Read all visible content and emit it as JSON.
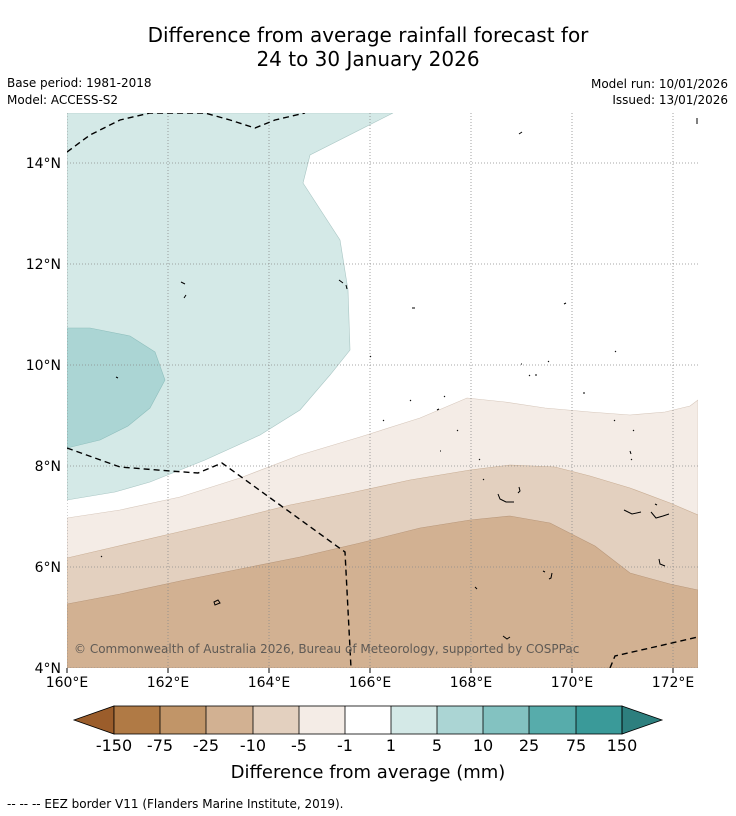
{
  "title": {
    "line1": "Difference from average rainfall forecast for",
    "line2": "24 to 30 January 2026"
  },
  "meta": {
    "base_period": "Base period: 1981-2018",
    "model": "Model: ACCESS-S2",
    "model_run": "Model run: 10/01/2026",
    "issued": "Issued: 13/01/2026"
  },
  "map": {
    "region": "160E-172.5E, 4N-15N",
    "lat_ticks": [
      "4°N",
      "6°N",
      "8°N",
      "10°N",
      "12°N",
      "14°N"
    ],
    "lon_ticks": [
      "160°E",
      "162°E",
      "164°E",
      "166°E",
      "168°E",
      "170°E",
      "172°E"
    ],
    "copyright": "© Commonwealth of Australia 2026, Bureau of Meteorology, supported by COSPPac"
  },
  "colorbar": {
    "title": "Difference from average (mm)",
    "labels": [
      "-150",
      "-75",
      "-25",
      "-10",
      "-5",
      "-1",
      "1",
      "5",
      "10",
      "25",
      "75",
      "150"
    ],
    "colors": {
      "lt150": "#9b5d2b",
      "m150_m75": "#b07a45",
      "m75_m25": "#c19568",
      "m25_m10": "#d2b192",
      "m10_m5": "#e3d0bf",
      "m5_m1": "#f4ece6",
      "m1_1": "#ffffff",
      "p1_5": "#d4e9e7",
      "p5_10": "#abd5d4",
      "p10_25": "#83c2c1",
      "p25_75": "#57acab",
      "p75_150": "#3a9a99",
      "gt150": "#2d7f7e"
    }
  },
  "legend_footer": "--  --  -- EEZ border V11 (Flanders Marine Institute, 2019)."
}
